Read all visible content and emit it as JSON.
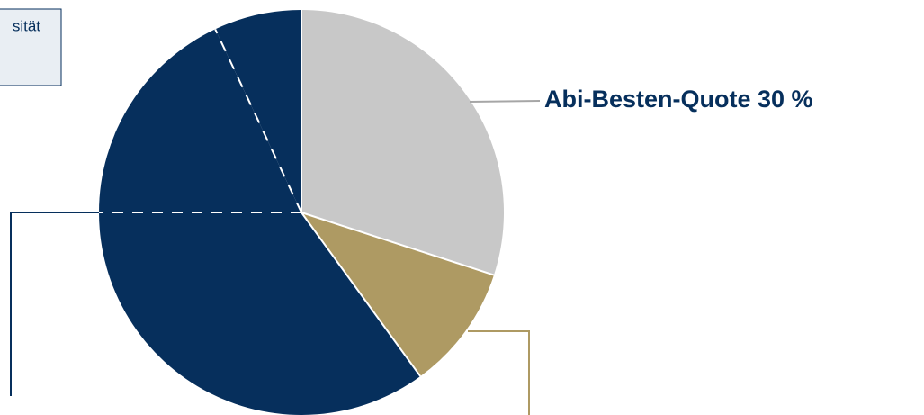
{
  "chart_data": {
    "type": "pie",
    "categories": [
      null,
      null,
      null,
      null,
      null
    ],
    "values": [
      30,
      10,
      35,
      18,
      7
    ],
    "value_labels": [
      "Abi-Besten-Quote 30 %",
      null,
      null,
      null,
      null
    ],
    "colors": [
      "#c8c8c8",
      "#ae9a63",
      "#062f5c",
      "#062f5c",
      "#062f5c"
    ],
    "annotation": "sität"
  }
}
